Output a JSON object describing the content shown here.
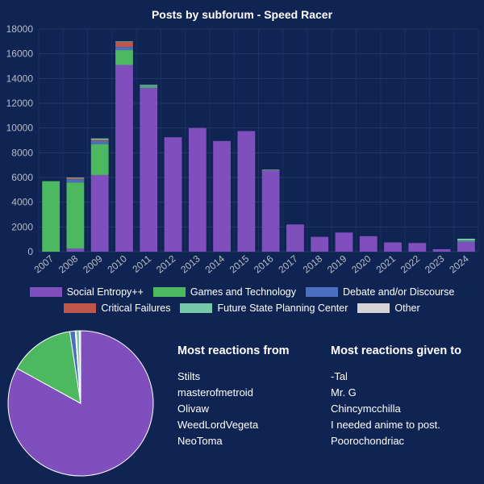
{
  "chart_data": [
    {
      "type": "bar",
      "stacked": true,
      "title": "Posts by subforum - Speed Racer",
      "categories": [
        "2007",
        "2008",
        "2009",
        "2010",
        "2011",
        "2012",
        "2013",
        "2014",
        "2015",
        "2016",
        "2017",
        "2018",
        "2019",
        "2020",
        "2021",
        "2022",
        "2023",
        "2024"
      ],
      "ylim": [
        0,
        18000
      ],
      "yticks": [
        0,
        2000,
        4000,
        6000,
        8000,
        10000,
        12000,
        14000,
        16000,
        18000
      ],
      "grid": true,
      "legend_position": "bottom",
      "series": [
        {
          "name": "Social Entropy++",
          "color": "#7e4fbd",
          "values": [
            0,
            250,
            6200,
            15100,
            13250,
            9250,
            10000,
            8950,
            9750,
            6600,
            2200,
            1200,
            1550,
            1250,
            750,
            700,
            200,
            800
          ]
        },
        {
          "name": "Games and Technology",
          "color": "#4cb860",
          "values": [
            5700,
            5350,
            2500,
            1200,
            150,
            0,
            0,
            0,
            0,
            50,
            0,
            0,
            0,
            0,
            0,
            0,
            0,
            50
          ]
        },
        {
          "name": "Debate and/or Discourse",
          "color": "#4a6ec0",
          "values": [
            0,
            250,
            250,
            250,
            50,
            0,
            0,
            0,
            0,
            0,
            0,
            0,
            0,
            0,
            0,
            0,
            0,
            50
          ]
        },
        {
          "name": "Critical Failures",
          "color": "#c0564a",
          "values": [
            0,
            100,
            100,
            400,
            0,
            0,
            0,
            0,
            0,
            0,
            0,
            0,
            0,
            0,
            0,
            0,
            0,
            0
          ]
        },
        {
          "name": "Future State Planning Center",
          "color": "#76c8a8",
          "values": [
            0,
            50,
            100,
            50,
            50,
            0,
            0,
            0,
            0,
            0,
            0,
            0,
            0,
            0,
            0,
            0,
            0,
            150
          ]
        },
        {
          "name": "Other",
          "color": "#d4d4d4",
          "values": [
            0,
            0,
            0,
            0,
            0,
            0,
            0,
            0,
            0,
            0,
            0,
            0,
            0,
            0,
            0,
            0,
            0,
            0
          ]
        }
      ]
    },
    {
      "type": "pie",
      "labels": [
        "Social Entropy++",
        "Games and Technology",
        "Debate and/or Discourse",
        "Critical Failures",
        "Future State Planning Center",
        "Other"
      ],
      "values": [
        83.0,
        14.6,
        1.2,
        0.2,
        0.7,
        0.3
      ],
      "colors": [
        "#7e4fbd",
        "#4cb860",
        "#4a6ec0",
        "#c0564a",
        "#76c8a8",
        "#d4d4d4"
      ]
    }
  ],
  "reactions": {
    "from_title": "Most reactions from",
    "from": [
      "Stilts",
      "masterofmetroid",
      "Olivaw",
      "WeedLordVegeta",
      "NeoToma"
    ],
    "given_title": "Most reactions given to",
    "given": [
      "-Tal",
      "Mr. G",
      "Chincymcchilla",
      "I needed anime to post.",
      "Poorochondriac"
    ]
  }
}
